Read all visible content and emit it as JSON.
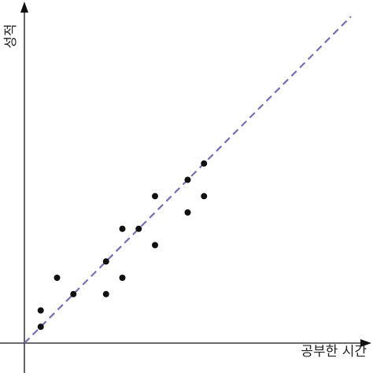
{
  "chart_data": {
    "type": "scatter",
    "title": "",
    "xlabel": "공부한 시간",
    "ylabel": "성적",
    "xlim": [
      0,
      10
    ],
    "ylim": [
      0,
      10
    ],
    "grid": false,
    "legend": "none",
    "points": [
      {
        "x": 0.5,
        "y": 0.5
      },
      {
        "x": 0.5,
        "y": 1.0
      },
      {
        "x": 1.0,
        "y": 2.0
      },
      {
        "x": 1.5,
        "y": 1.5
      },
      {
        "x": 2.5,
        "y": 1.5
      },
      {
        "x": 2.5,
        "y": 2.5
      },
      {
        "x": 3.0,
        "y": 2.0
      },
      {
        "x": 3.0,
        "y": 3.5
      },
      {
        "x": 3.5,
        "y": 3.5
      },
      {
        "x": 4.0,
        "y": 3.0
      },
      {
        "x": 4.0,
        "y": 4.5
      },
      {
        "x": 5.0,
        "y": 4.0
      },
      {
        "x": 5.0,
        "y": 5.0
      },
      {
        "x": 5.5,
        "y": 4.5
      },
      {
        "x": 5.5,
        "y": 5.5
      }
    ],
    "trend_line": {
      "from": [
        0,
        0
      ],
      "to": [
        10,
        10
      ],
      "style": "dashed"
    },
    "colors": {
      "points": "#111111",
      "trend": "#7b6bb5",
      "axes": "#111111"
    }
  }
}
